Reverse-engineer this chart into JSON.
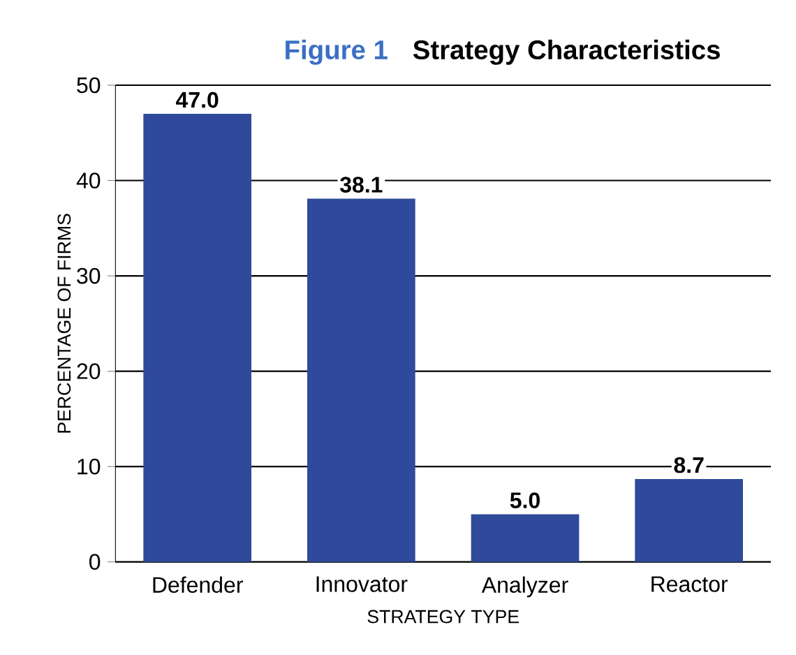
{
  "chart_data": {
    "type": "bar",
    "title": "Strategy Characteristics",
    "annotations": [
      "Figure 1"
    ],
    "xlabel": "STRATEGY TYPE",
    "ylabel": "PERCENTAGE OF FIRMS",
    "categories": [
      "Defender",
      "Innovator",
      "Analyzer",
      "Reactor"
    ],
    "values": [
      47.0,
      38.1,
      5.0,
      8.7
    ],
    "value_labels": [
      "47.0",
      "38.1",
      "5.0",
      "8.7"
    ],
    "color": "#2f4a9a",
    "ylim": [
      0,
      50
    ],
    "yticks": [
      0,
      10,
      20,
      30,
      40,
      50
    ],
    "grid": "y"
  }
}
